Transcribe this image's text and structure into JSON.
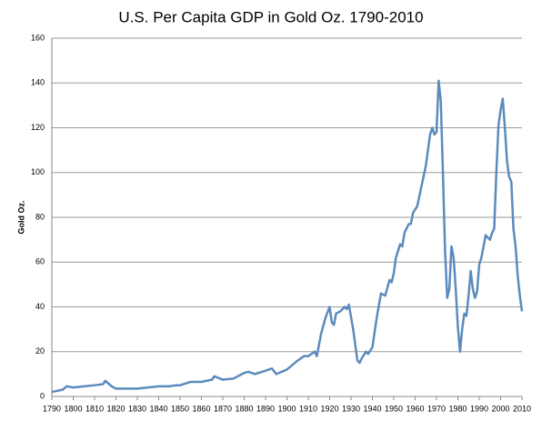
{
  "chart_data": {
    "type": "line",
    "title": "U.S. Per Capita GDP in Gold Oz. 1790-2010",
    "y_label": "Gold Oz.",
    "series": [
      {
        "name": "Gold Oz.",
        "color": "#5b8bbd",
        "x": [
          1790,
          1795,
          1797,
          1800,
          1805,
          1810,
          1814,
          1815,
          1818,
          1820,
          1825,
          1830,
          1835,
          1840,
          1845,
          1848,
          1850,
          1855,
          1860,
          1865,
          1866,
          1870,
          1875,
          1880,
          1882,
          1885,
          1890,
          1893,
          1895,
          1900,
          1905,
          1908,
          1910,
          1913,
          1914,
          1916,
          1918,
          1920,
          1921,
          1922,
          1923,
          1925,
          1927,
          1928,
          1929,
          1931,
          1933,
          1934,
          1935,
          1937,
          1938,
          1940,
          1942,
          1944,
          1946,
          1948,
          1949,
          1950,
          1951,
          1953,
          1954,
          1955,
          1957,
          1958,
          1959,
          1961,
          1963,
          1965,
          1967,
          1968,
          1969,
          1970,
          1971,
          1972,
          1973,
          1974,
          1975,
          1976,
          1977,
          1978,
          1979,
          1980,
          1981,
          1982,
          1983,
          1984,
          1985,
          1986,
          1987,
          1988,
          1989,
          1990,
          1991,
          1993,
          1994,
          1995,
          1996,
          1997,
          1998,
          1999,
          2000,
          2001,
          2002,
          2003,
          2004,
          2005,
          2006,
          2007,
          2008,
          2009,
          2010
        ],
        "values": [
          2,
          3,
          4.5,
          4,
          4.5,
          5,
          5.5,
          7,
          4.5,
          3.5,
          3.5,
          3.5,
          4,
          4.5,
          4.5,
          5,
          5,
          6.5,
          6.5,
          7.5,
          9,
          7.5,
          8,
          10.5,
          11,
          10,
          11.5,
          12.5,
          10,
          12,
          16,
          18,
          18,
          20,
          18,
          28,
          35,
          40,
          33,
          32,
          37,
          38,
          40,
          39,
          41,
          30,
          16,
          15,
          17,
          20,
          19,
          22,
          35,
          46,
          45,
          52,
          51,
          55,
          62,
          68,
          67,
          73,
          77,
          77,
          82,
          85,
          94,
          103,
          117,
          120,
          117,
          118,
          141,
          132,
          100,
          65,
          44,
          48,
          67,
          62,
          48,
          31,
          20,
          30,
          37,
          36,
          45,
          56,
          48,
          44,
          47,
          59,
          62,
          72,
          71,
          70,
          73,
          75,
          100,
          121,
          128,
          133,
          120,
          105,
          98,
          96,
          75,
          67,
          54,
          45,
          38
        ]
      }
    ],
    "xlim": [
      1790,
      2010
    ],
    "xticks": [
      1790,
      1800,
      1810,
      1820,
      1830,
      1840,
      1850,
      1860,
      1870,
      1880,
      1890,
      1900,
      1910,
      1920,
      1930,
      1940,
      1950,
      1960,
      1970,
      1980,
      1990,
      2000,
      2010
    ],
    "ylim": [
      0,
      160
    ],
    "yticks": [
      0,
      20,
      40,
      60,
      80,
      100,
      120,
      140,
      160
    ],
    "grid": true
  }
}
